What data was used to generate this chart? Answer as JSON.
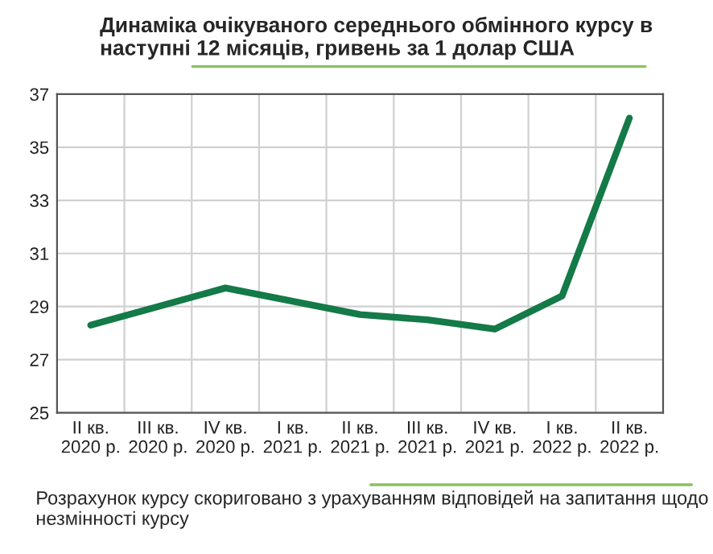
{
  "chart_data": {
    "type": "line",
    "title": "Динаміка очікуваного середнього обмінного курсу в наступні 12 місяців, гривень за 1 долар США",
    "categories": [
      "II кв.\n2020 р.",
      "III кв.\n2020 р.",
      "IV кв.\n2020 р.",
      "I кв.\n2021 р.",
      "II кв.\n2021 р.",
      "III кв.\n2021 р.",
      "IV кв.\n2021 р.",
      "I кв.\n2022 р.",
      "II кв.\n2022 р."
    ],
    "series": [
      {
        "color": "#137a48",
        "values": [
          28.3,
          29.0,
          29.7,
          29.2,
          28.7,
          28.5,
          28.15,
          29.4,
          36.1
        ]
      }
    ],
    "ylim": [
      25,
      37
    ],
    "yticks": [
      25,
      27,
      29,
      31,
      33,
      35,
      37
    ],
    "grid": true,
    "legend": false,
    "marker": "none",
    "line_style": "solid",
    "annotations": [
      "Розрахунок курсу скориговано з урахуванням відповідей на запитання щодо незмінності курсу"
    ]
  }
}
